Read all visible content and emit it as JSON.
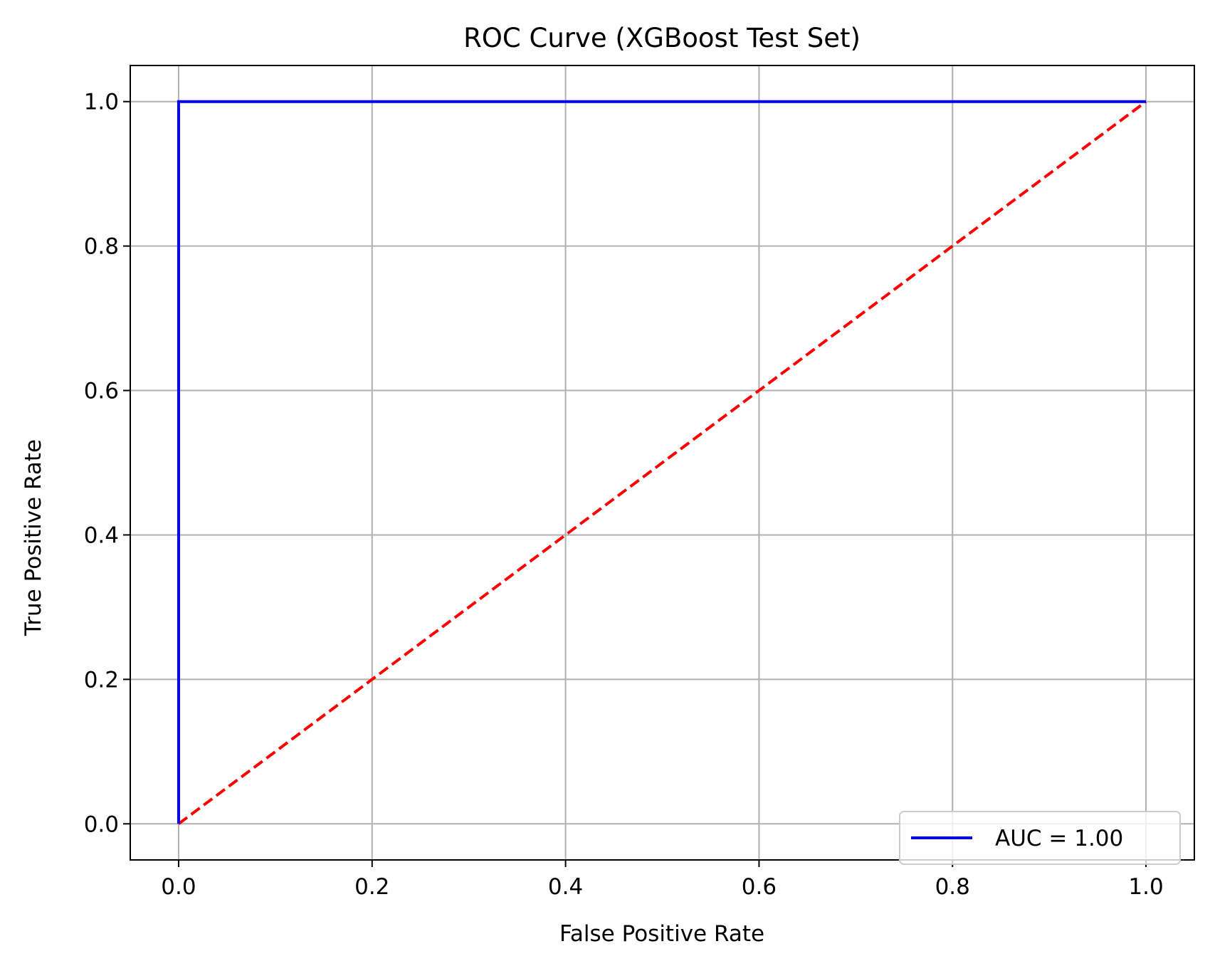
{
  "chart_data": {
    "type": "line",
    "title": "ROC Curve (XGBoost Test Set)",
    "xlabel": "False Positive Rate",
    "ylabel": "True Positive Rate",
    "xlim": [
      -0.05,
      1.05
    ],
    "ylim": [
      -0.05,
      1.05
    ],
    "xticks": [
      0.0,
      0.2,
      0.4,
      0.6,
      0.8,
      1.0
    ],
    "yticks": [
      0.0,
      0.2,
      0.4,
      0.6,
      0.8,
      1.0
    ],
    "xtick_labels": [
      "0.0",
      "0.2",
      "0.4",
      "0.6",
      "0.8",
      "1.0"
    ],
    "ytick_labels": [
      "0.0",
      "0.2",
      "0.4",
      "0.6",
      "0.8",
      "1.0"
    ],
    "grid": true,
    "legend_position": "lower-right",
    "series": [
      {
        "name": "AUC = 1.00",
        "color": "#0000ff",
        "style": "solid",
        "x": [
          0.0,
          0.0,
          1.0
        ],
        "y": [
          0.0,
          1.0,
          1.0
        ]
      },
      {
        "color": "#ff0000",
        "style": "dashed",
        "x": [
          0.0,
          1.0
        ],
        "y": [
          0.0,
          1.0
        ]
      }
    ]
  }
}
